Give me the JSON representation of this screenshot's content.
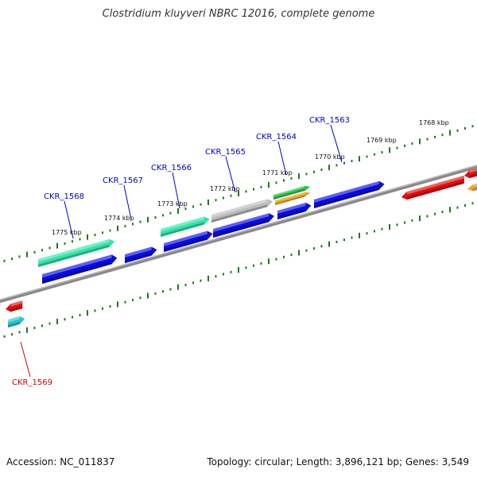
{
  "title": "Clostridium kluyveri NBRC 12016, complete genome",
  "footer": {
    "accession": "Accession: NC_011837",
    "summary": "Topology: circular; Length: 3,896,121 bp; Genes: 3,549"
  },
  "colors": {
    "blue": "#0a0ae6",
    "green": "#2ee6a8",
    "gray": "#bdbdbd",
    "red": "#e60a0a",
    "orange": "#f0a020",
    "lime": "#22c040",
    "cyan": "#20c8d0",
    "label_blue": "#0000cc",
    "label_red": "#cc0000",
    "tick_green": "#1a7a1a",
    "backbone": "#888888"
  },
  "kbp_ticks": [
    "1768 kbp",
    "1769 kbp",
    "1770 kbp",
    "1771 kbp",
    "1772 kbp",
    "1773 kbp",
    "1774 kbp",
    "1775 kbp"
  ],
  "gene_labels": [
    {
      "id": "CKR_1563",
      "color": "label_blue"
    },
    {
      "id": "CKR_1564",
      "color": "label_blue"
    },
    {
      "id": "CKR_1565",
      "color": "label_blue"
    },
    {
      "id": "CKR_1566",
      "color": "label_blue"
    },
    {
      "id": "CKR_1567",
      "color": "label_blue"
    },
    {
      "id": "CKR_1568",
      "color": "label_blue"
    },
    {
      "id": "CKR_1569",
      "color": "label_red"
    }
  ]
}
